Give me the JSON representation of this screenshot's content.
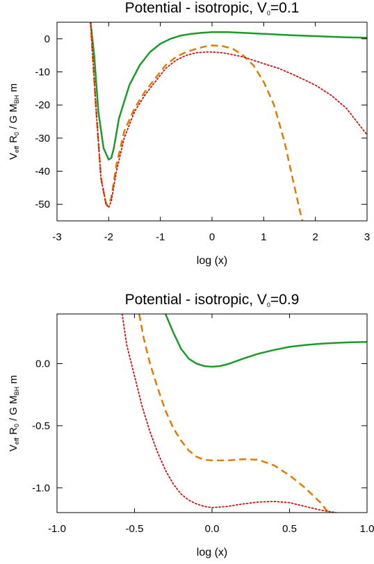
{
  "chart_data": [
    {
      "type": "line",
      "title": "Potential - isotropic, V₀=0.1",
      "title_main": "Potential - isotropic, V",
      "title_sub": "0",
      "title_tail": "=0.1",
      "xlabel": "log (x)",
      "ylabel_parts": {
        "a": "V",
        "a_sub": "eff",
        "b": " R",
        "b_sub": "0",
        "c": " / G M",
        "c_sub": "BH",
        "d": " m"
      },
      "xlim": [
        -3,
        3
      ],
      "ylim": [
        -55,
        5
      ],
      "xticks": [
        -3,
        -2,
        -1,
        0,
        1,
        2,
        3
      ],
      "xtick_labels": [
        "-3",
        "-2",
        "-1",
        "0",
        "1",
        "2",
        "3"
      ],
      "yticks": [
        0,
        -10,
        -20,
        -30,
        -40,
        -50
      ],
      "ytick_labels": [
        "0",
        "-10",
        "-20",
        "-30",
        "-40",
        "-50"
      ],
      "grid": false,
      "series": [
        {
          "style": "solid",
          "color": "#1a9a2a",
          "x": [
            -2.35,
            -2.28,
            -2.2,
            -2.1,
            -2.0,
            -1.95,
            -1.9,
            -1.8,
            -1.6,
            -1.4,
            -1.2,
            -1.0,
            -0.8,
            -0.6,
            -0.4,
            -0.2,
            0.0,
            0.3,
            0.6,
            1.0,
            1.5,
            2.0,
            2.5,
            3.0
          ],
          "y": [
            5,
            -5,
            -22,
            -33,
            -36.5,
            -36,
            -33,
            -24,
            -14,
            -8,
            -4,
            -1.5,
            0,
            1,
            1.5,
            1.8,
            2,
            2,
            1.8,
            1.5,
            1.1,
            0.8,
            0.5,
            0.3
          ]
        },
        {
          "style": "dashed",
          "color": "#e07b00",
          "x": [
            -2.35,
            -2.25,
            -2.15,
            -2.05,
            -2.0,
            -1.95,
            -1.85,
            -1.7,
            -1.5,
            -1.3,
            -1.1,
            -0.9,
            -0.7,
            -0.5,
            -0.3,
            -0.1,
            0.0,
            0.2,
            0.4,
            0.6,
            0.8,
            1.0,
            1.2,
            1.4,
            1.5,
            1.6,
            1.7,
            1.75
          ],
          "y": [
            5,
            -20,
            -42,
            -50,
            -50,
            -48,
            -38,
            -28,
            -21,
            -16,
            -12,
            -8,
            -5.5,
            -4,
            -3,
            -2.2,
            -2,
            -2.2,
            -3,
            -5,
            -8,
            -13,
            -20,
            -31,
            -38,
            -45,
            -52,
            -55
          ]
        },
        {
          "style": "dotted",
          "color": "#cc1010",
          "x": [
            -2.35,
            -2.25,
            -2.15,
            -2.05,
            -2.0,
            -1.95,
            -1.85,
            -1.7,
            -1.5,
            -1.3,
            -1.1,
            -0.9,
            -0.7,
            -0.5,
            -0.3,
            -0.1,
            0.0,
            0.2,
            0.4,
            0.6,
            0.8,
            1.0,
            1.3,
            1.6,
            2.0,
            2.3,
            2.6,
            2.8,
            3.0
          ],
          "y": [
            5,
            -20,
            -42,
            -50,
            -51,
            -49,
            -40,
            -30,
            -22,
            -17,
            -13,
            -9,
            -6.5,
            -5,
            -4.2,
            -4,
            -4,
            -4.2,
            -4.8,
            -5.5,
            -6.5,
            -7.5,
            -9,
            -11,
            -14,
            -17,
            -21,
            -25,
            -29
          ]
        }
      ]
    },
    {
      "type": "line",
      "title": "Potential - isotropic, V₀=0.9",
      "title_main": "Potential - isotropic, V",
      "title_sub": "0",
      "title_tail": "=0.9",
      "xlabel": "log (x)",
      "ylabel_parts": {
        "a": "V",
        "a_sub": "eff",
        "b": " R",
        "b_sub": "0",
        "c": " / G M",
        "c_sub": "BH",
        "d": " m"
      },
      "xlim": [
        -1.0,
        1.0
      ],
      "ylim": [
        -1.2,
        0.4
      ],
      "xticks": [
        -1.0,
        -0.5,
        0.0,
        0.5,
        1.0
      ],
      "xtick_labels": [
        "-1.0",
        "-0.5",
        "0.0",
        "0.5",
        "1.0"
      ],
      "yticks": [
        0.0,
        -0.5,
        -1.0
      ],
      "ytick_labels": [
        "0.0",
        "-0.5",
        "-1.0"
      ],
      "grid": false,
      "series": [
        {
          "style": "solid",
          "color": "#1a9a2a",
          "x": [
            -0.3,
            -0.25,
            -0.2,
            -0.15,
            -0.1,
            -0.05,
            0.0,
            0.05,
            0.1,
            0.2,
            0.3,
            0.4,
            0.5,
            0.6,
            0.7,
            0.8,
            0.9,
            1.0
          ],
          "y": [
            0.4,
            0.25,
            0.12,
            0.04,
            0.0,
            -0.02,
            -0.025,
            -0.02,
            -0.005,
            0.04,
            0.08,
            0.11,
            0.135,
            0.15,
            0.16,
            0.167,
            0.172,
            0.175
          ]
        },
        {
          "style": "dashed",
          "color": "#e07b00",
          "x": [
            -0.47,
            -0.44,
            -0.4,
            -0.35,
            -0.3,
            -0.25,
            -0.2,
            -0.15,
            -0.1,
            -0.05,
            0.0,
            0.1,
            0.2,
            0.3,
            0.4,
            0.5,
            0.6,
            0.7,
            0.75
          ],
          "y": [
            0.4,
            0.2,
            0.0,
            -0.2,
            -0.38,
            -0.52,
            -0.62,
            -0.7,
            -0.75,
            -0.775,
            -0.78,
            -0.78,
            -0.77,
            -0.775,
            -0.82,
            -0.9,
            -1.0,
            -1.12,
            -1.2
          ]
        },
        {
          "style": "dotted",
          "color": "#cc1010",
          "x": [
            -0.58,
            -0.55,
            -0.5,
            -0.45,
            -0.4,
            -0.35,
            -0.3,
            -0.25,
            -0.2,
            -0.15,
            -0.1,
            -0.05,
            0.0,
            0.1,
            0.2,
            0.3,
            0.4,
            0.5,
            0.6,
            0.7,
            0.8
          ],
          "y": [
            0.4,
            0.15,
            -0.1,
            -0.35,
            -0.55,
            -0.72,
            -0.86,
            -0.97,
            -1.05,
            -1.1,
            -1.13,
            -1.15,
            -1.16,
            -1.15,
            -1.13,
            -1.115,
            -1.11,
            -1.12,
            -1.15,
            -1.18,
            -1.2
          ]
        }
      ]
    }
  ]
}
